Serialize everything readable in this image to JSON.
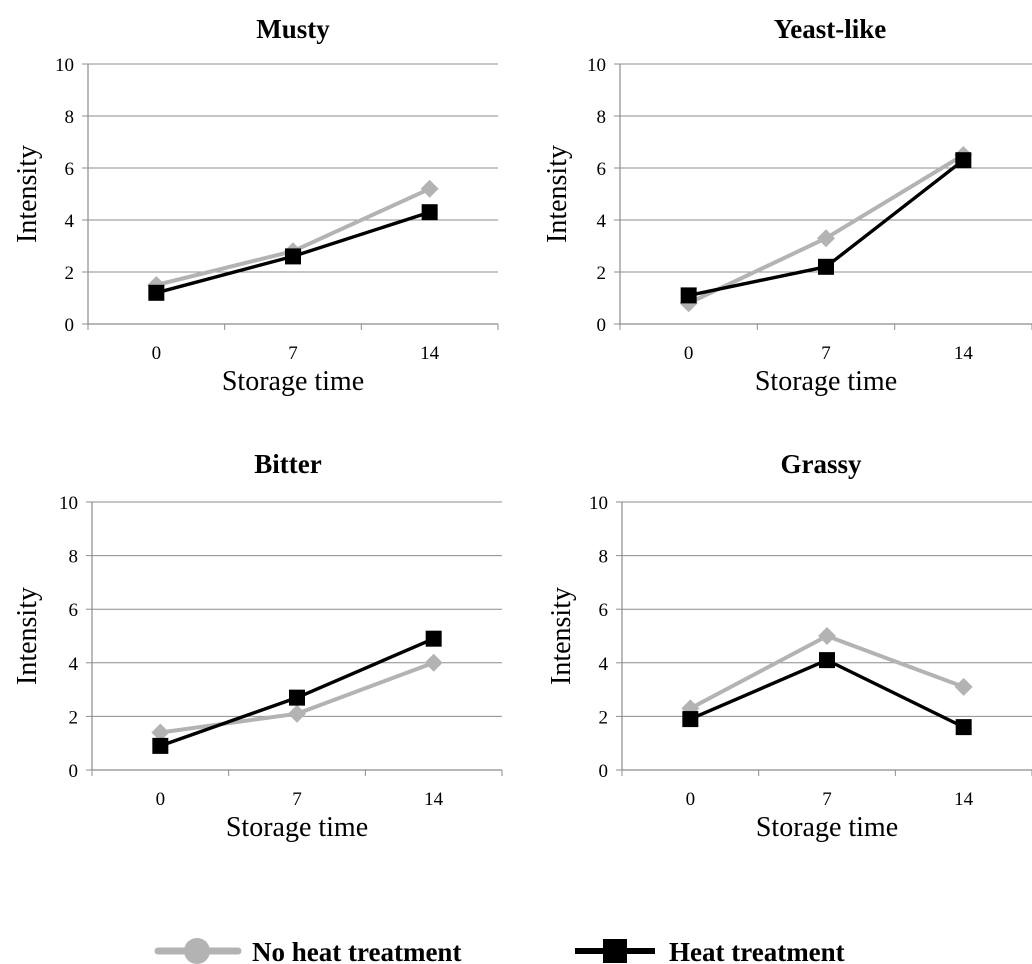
{
  "colors": {
    "no_heat": "#b3b3b3",
    "heat": "#000000",
    "grid": "#8c8c8c",
    "axis": "#8c8c8c"
  },
  "legend": {
    "items": [
      {
        "label": "No heat treatment",
        "color": "#b3b3b3",
        "marker": "diamond"
      },
      {
        "label": "Heat treatment",
        "color": "#000000",
        "marker": "square"
      }
    ],
    "placement": "bottom"
  },
  "chart_data": [
    {
      "type": "line",
      "title": "Musty",
      "xlabel": "Storage time",
      "ylabel": "Intensity",
      "categories": [
        "0",
        "7",
        "14"
      ],
      "ylim": [
        0,
        10
      ],
      "yticks": [
        "0",
        "2",
        "4",
        "6",
        "8",
        "10"
      ],
      "grid": true,
      "series": [
        {
          "name": "No heat treatment",
          "values": [
            1.5,
            2.8,
            5.2
          ]
        },
        {
          "name": "Heat treatment",
          "values": [
            1.2,
            2.6,
            4.3
          ]
        }
      ]
    },
    {
      "type": "line",
      "title": "Yeast-like",
      "xlabel": "Storage time",
      "ylabel": "Intensity",
      "categories": [
        "0",
        "7",
        "14"
      ],
      "ylim": [
        0,
        10
      ],
      "yticks": [
        "0",
        "2",
        "4",
        "6",
        "8",
        "10"
      ],
      "grid": true,
      "series": [
        {
          "name": "No heat treatment",
          "values": [
            0.8,
            3.3,
            6.5
          ]
        },
        {
          "name": "Heat treatment",
          "values": [
            1.1,
            2.2,
            6.3
          ]
        }
      ]
    },
    {
      "type": "line",
      "title": "Bitter",
      "xlabel": "Storage time",
      "ylabel": "Intensity",
      "categories": [
        "0",
        "7",
        "14"
      ],
      "ylim": [
        0,
        10
      ],
      "yticks": [
        "0",
        "2",
        "4",
        "6",
        "8",
        "10"
      ],
      "grid": true,
      "series": [
        {
          "name": "No heat treatment",
          "values": [
            1.4,
            2.1,
            4.0
          ]
        },
        {
          "name": "Heat treatment",
          "values": [
            0.9,
            2.7,
            4.9
          ]
        }
      ]
    },
    {
      "type": "line",
      "title": "Grassy",
      "xlabel": "Storage time",
      "ylabel": "Intensity",
      "categories": [
        "0",
        "7",
        "14"
      ],
      "ylim": [
        0,
        10
      ],
      "yticks": [
        "0",
        "2",
        "4",
        "6",
        "8",
        "10"
      ],
      "grid": true,
      "series": [
        {
          "name": "No heat treatment",
          "values": [
            2.3,
            5.0,
            3.1
          ]
        },
        {
          "name": "Heat treatment",
          "values": [
            1.9,
            4.1,
            1.6
          ]
        }
      ]
    }
  ]
}
